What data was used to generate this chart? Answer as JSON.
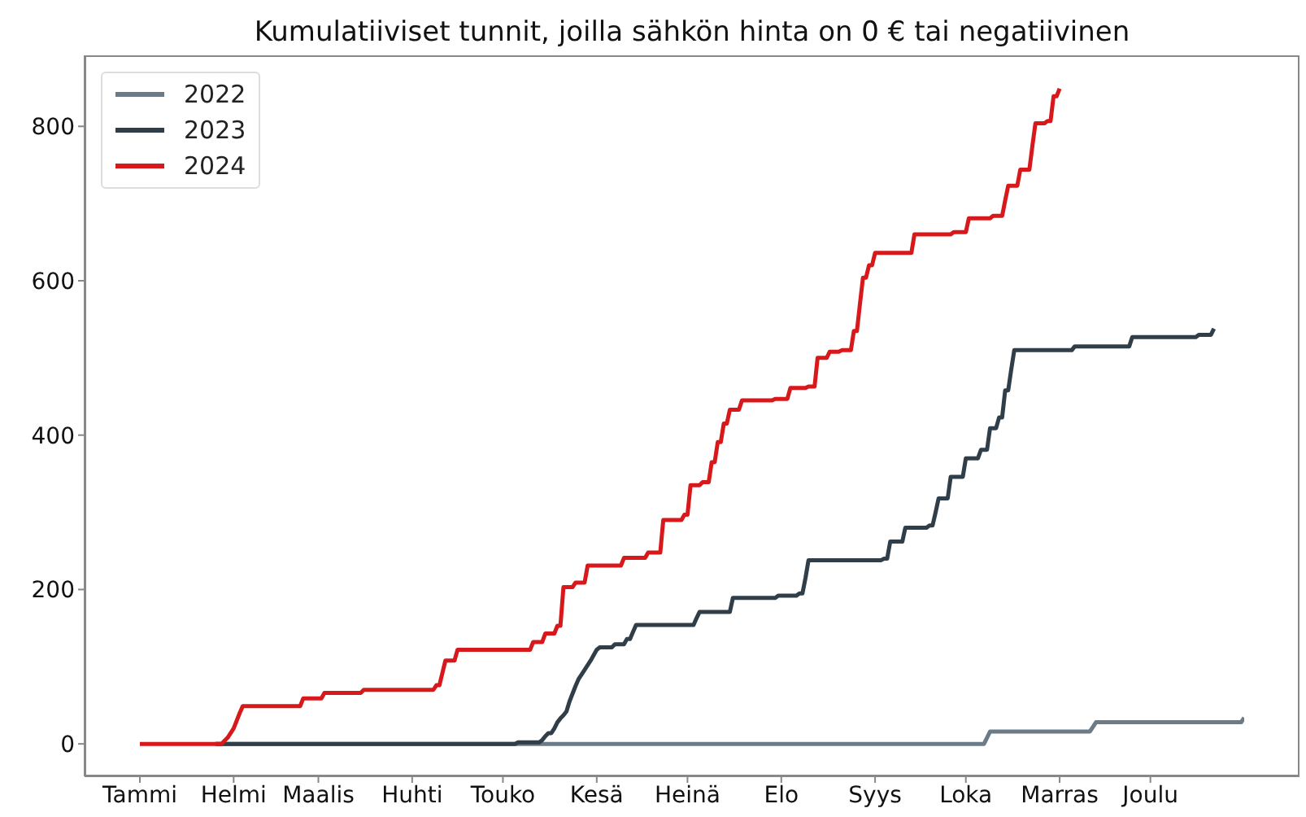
{
  "chart_data": {
    "type": "line",
    "title": "Kumulatiiviset tunnit, joilla sähkön hinta on 0 € tai negatiivinen",
    "categories": [
      "Tammi",
      null,
      null,
      null,
      null,
      null,
      null,
      null,
      null,
      null,
      null,
      null,
      null,
      null,
      null,
      null,
      null,
      null,
      null,
      null,
      null,
      null,
      null,
      null,
      null,
      null,
      null,
      null,
      null,
      null,
      null,
      "Helmi",
      null,
      null,
      null,
      null,
      null,
      null,
      null,
      null,
      null,
      null,
      null,
      null,
      null,
      null,
      null,
      null,
      null,
      null,
      null,
      null,
      null,
      null,
      null,
      null,
      null,
      null,
      null,
      "Maalis",
      null,
      null,
      null,
      null,
      null,
      null,
      null,
      null,
      null,
      null,
      null,
      null,
      null,
      null,
      null,
      null,
      null,
      null,
      null,
      null,
      null,
      null,
      null,
      null,
      null,
      null,
      null,
      null,
      null,
      null,
      "Huhti",
      null,
      null,
      null,
      null,
      null,
      null,
      null,
      null,
      null,
      null,
      null,
      null,
      null,
      null,
      null,
      null,
      null,
      null,
      null,
      null,
      null,
      null,
      null,
      null,
      null,
      null,
      null,
      null,
      null,
      "Touko",
      null,
      null,
      null,
      null,
      null,
      null,
      null,
      null,
      null,
      null,
      null,
      null,
      null,
      null,
      null,
      null,
      null,
      null,
      null,
      null,
      null,
      null,
      null,
      null,
      null,
      null,
      null,
      null,
      null,
      null,
      "Kesä",
      null,
      null,
      null,
      null,
      null,
      null,
      null,
      null,
      null,
      null,
      null,
      null,
      null,
      null,
      null,
      null,
      null,
      null,
      null,
      null,
      null,
      null,
      null,
      null,
      null,
      null,
      null,
      null,
      null,
      "Heinä",
      null,
      null,
      null,
      null,
      null,
      null,
      null,
      null,
      null,
      null,
      null,
      null,
      null,
      null,
      null,
      null,
      null,
      null,
      null,
      null,
      null,
      null,
      null,
      null,
      null,
      null,
      null,
      null,
      null,
      null,
      "Elo",
      null,
      null,
      null,
      null,
      null,
      null,
      null,
      null,
      null,
      null,
      null,
      null,
      null,
      null,
      null,
      null,
      null,
      null,
      null,
      null,
      null,
      null,
      null,
      null,
      null,
      null,
      null,
      null,
      null,
      null,
      "Syys",
      null,
      null,
      null,
      null,
      null,
      null,
      null,
      null,
      null,
      null,
      null,
      null,
      null,
      null,
      null,
      null,
      null,
      null,
      null,
      null,
      null,
      null,
      null,
      null,
      null,
      null,
      null,
      null,
      null,
      "Loka",
      null,
      null,
      null,
      null,
      null,
      null,
      null,
      null,
      null,
      null,
      null,
      null,
      null,
      null,
      null,
      null,
      null,
      null,
      null,
      null,
      null,
      null,
      null,
      null,
      null,
      null,
      null,
      null,
      null,
      null,
      "Marras",
      null,
      null,
      null,
      null,
      null,
      null,
      null,
      null,
      null,
      null,
      null,
      null,
      null,
      null,
      null,
      null,
      null,
      null,
      null,
      null,
      null,
      null,
      null,
      null,
      null,
      null,
      null,
      null,
      null,
      "Joulu",
      null,
      null,
      null,
      null,
      null,
      null,
      null,
      null,
      null,
      null,
      null,
      null,
      null,
      null,
      null,
      null,
      null,
      null,
      null,
      null,
      null,
      null,
      null,
      null,
      null,
      null,
      null,
      null,
      null,
      null,
      null
    ],
    "ylim": [
      -42,
      892
    ],
    "yticks": [
      0,
      200,
      400,
      600,
      800
    ],
    "legend": "top left",
    "series": [
      {
        "name": "2022",
        "color": "#6b7b88",
        "values": [
          null,
          null,
          null,
          null,
          null,
          null,
          null,
          null,
          null,
          null,
          null,
          null,
          null,
          null,
          null,
          null,
          null,
          null,
          null,
          null,
          null,
          null,
          null,
          null,
          null,
          0,
          0,
          0,
          0,
          0,
          0,
          0,
          0,
          0,
          0,
          0,
          0,
          0,
          0,
          0,
          0,
          0,
          0,
          0,
          0,
          0,
          0,
          0,
          0,
          0,
          0,
          0,
          0,
          0,
          0,
          0,
          0,
          0,
          0,
          0,
          0,
          0,
          0,
          0,
          0,
          0,
          0,
          0,
          0,
          0,
          0,
          0,
          0,
          0,
          0,
          0,
          0,
          0,
          0,
          0,
          0,
          0,
          0,
          0,
          0,
          0,
          0,
          0,
          0,
          0,
          0,
          0,
          0,
          0,
          0,
          0,
          0,
          0,
          0,
          0,
          0,
          0,
          0,
          0,
          0,
          0,
          0,
          0,
          0,
          0,
          0,
          0,
          0,
          0,
          0,
          0,
          0,
          0,
          0,
          0,
          0,
          0,
          0,
          0,
          0,
          0,
          0,
          0,
          0,
          0,
          0,
          0,
          0,
          0,
          0,
          0,
          0,
          0,
          0,
          0,
          0,
          0,
          0,
          0,
          0,
          0,
          0,
          0,
          0,
          0,
          0,
          0,
          0,
          0,
          0,
          0,
          0,
          0,
          0,
          0,
          0,
          0,
          0,
          0,
          0,
          0,
          0,
          0,
          0,
          0,
          0,
          0,
          0,
          0,
          0,
          0,
          0,
          0,
          0,
          0,
          0,
          0,
          0,
          0,
          0,
          0,
          0,
          0,
          0,
          0,
          0,
          0,
          0,
          0,
          0,
          0,
          0,
          0,
          0,
          0,
          0,
          0,
          0,
          0,
          0,
          0,
          0,
          0,
          0,
          0,
          0,
          0,
          0,
          0,
          0,
          0,
          0,
          0,
          0,
          0,
          0,
          0,
          0,
          0,
          0,
          0,
          0,
          0,
          0,
          0,
          0,
          0,
          0,
          0,
          0,
          0,
          0,
          0,
          0,
          0,
          0,
          0,
          0,
          0,
          0,
          0,
          0,
          0,
          0,
          0,
          0,
          0,
          0,
          0,
          0,
          0,
          0,
          0,
          0,
          0,
          0,
          0,
          0,
          0,
          0,
          0,
          0,
          0,
          0,
          0,
          0,
          0,
          0,
          0,
          0,
          0,
          0,
          0,
          0,
          0,
          8,
          16,
          16,
          16,
          16,
          16,
          16,
          16,
          16,
          16,
          16,
          16,
          16,
          16,
          16,
          16,
          16,
          16,
          16,
          16,
          16,
          16,
          16,
          16,
          16,
          16,
          16,
          16,
          16,
          16,
          16,
          16,
          16,
          16,
          16,
          22,
          28,
          28,
          28,
          28,
          28,
          28,
          28,
          28,
          28,
          28,
          28,
          28,
          28,
          28,
          28,
          28,
          28,
          28,
          28,
          28,
          28,
          28,
          28,
          28,
          28,
          28,
          28,
          28,
          28,
          28,
          28,
          28,
          28,
          28,
          28,
          28,
          28,
          28,
          28,
          28,
          28,
          28,
          28,
          28,
          28,
          28,
          28,
          28,
          28,
          34
        ]
      },
      {
        "name": "2023",
        "color": "#2f3e48",
        "values": [
          null,
          null,
          null,
          null,
          null,
          null,
          null,
          null,
          null,
          null,
          null,
          null,
          null,
          null,
          null,
          null,
          null,
          null,
          null,
          null,
          null,
          null,
          null,
          null,
          null,
          0,
          0,
          0,
          0,
          0,
          0,
          0,
          0,
          0,
          0,
          0,
          0,
          0,
          0,
          0,
          0,
          0,
          0,
          0,
          0,
          0,
          0,
          0,
          0,
          0,
          0,
          0,
          0,
          0,
          0,
          0,
          0,
          0,
          0,
          0,
          0,
          0,
          0,
          0,
          0,
          0,
          0,
          0,
          0,
          0,
          0,
          0,
          0,
          0,
          0,
          0,
          0,
          0,
          0,
          0,
          0,
          0,
          0,
          0,
          0,
          0,
          0,
          0,
          0,
          0,
          0,
          0,
          0,
          0,
          0,
          0,
          0,
          0,
          0,
          0,
          0,
          0,
          0,
          0,
          0,
          0,
          0,
          0,
          0,
          0,
          0,
          0,
          0,
          0,
          0,
          0,
          0,
          0,
          0,
          0,
          0,
          0,
          0,
          0,
          0,
          2,
          2,
          2,
          2,
          2,
          2,
          2,
          2,
          5,
          10,
          14,
          14,
          20,
          28,
          33,
          37,
          42,
          55,
          65,
          75,
          84,
          90,
          96,
          102,
          108,
          115,
          122,
          125,
          125,
          125,
          125,
          125,
          129,
          129,
          129,
          129,
          136,
          136,
          145,
          154,
          154,
          154,
          154,
          154,
          154,
          154,
          154,
          154,
          154,
          154,
          154,
          154,
          154,
          154,
          154,
          154,
          154,
          154,
          154,
          163,
          171,
          171,
          171,
          171,
          171,
          171,
          171,
          171,
          171,
          171,
          171,
          189,
          189,
          189,
          189,
          189,
          189,
          189,
          189,
          189,
          189,
          189,
          189,
          189,
          189,
          189,
          192,
          192,
          192,
          192,
          192,
          192,
          192,
          195,
          195,
          215,
          238,
          238,
          238,
          238,
          238,
          238,
          238,
          238,
          238,
          238,
          238,
          238,
          238,
          238,
          238,
          238,
          238,
          238,
          238,
          238,
          238,
          238,
          238,
          238,
          238,
          240,
          240,
          262,
          262,
          262,
          262,
          262,
          280,
          280,
          280,
          280,
          280,
          280,
          280,
          280,
          283,
          283,
          300,
          318,
          318,
          318,
          318,
          346,
          346,
          346,
          346,
          346,
          370,
          370,
          370,
          370,
          370,
          381,
          381,
          381,
          409,
          409,
          409,
          423,
          423,
          458,
          458,
          485,
          510,
          510,
          510,
          510,
          510,
          510,
          510,
          510,
          510,
          510,
          510,
          510,
          510,
          510,
          510,
          510,
          510,
          510,
          510,
          510,
          515,
          515,
          515,
          515,
          515,
          515,
          515,
          515,
          515,
          515,
          515,
          515,
          515,
          515,
          515,
          515,
          515,
          515,
          515,
          527,
          527,
          527,
          527,
          527,
          527,
          527,
          527,
          527,
          527,
          527,
          527,
          527,
          527,
          527,
          527,
          527,
          527,
          527,
          527,
          527,
          527,
          530,
          530,
          530,
          530,
          530,
          538,
          null,
          null,
          null,
          null,
          null,
          null,
          null,
          null,
          null,
          null
        ]
      },
      {
        "name": "2024",
        "color": "#d7191c",
        "values": [
          0,
          0,
          0,
          0,
          0,
          0,
          0,
          0,
          0,
          0,
          0,
          0,
          0,
          0,
          0,
          0,
          0,
          0,
          0,
          0,
          0,
          0,
          0,
          0,
          0,
          0,
          0,
          0,
          4,
          8,
          14,
          20,
          30,
          40,
          49,
          49,
          49,
          49,
          49,
          49,
          49,
          49,
          49,
          49,
          49,
          49,
          49,
          49,
          49,
          49,
          49,
          49,
          49,
          49,
          59,
          59,
          59,
          59,
          59,
          59,
          59,
          66,
          66,
          66,
          66,
          66,
          66,
          66,
          66,
          66,
          66,
          66,
          66,
          66,
          70,
          70,
          70,
          70,
          70,
          70,
          70,
          70,
          70,
          70,
          70,
          70,
          70,
          70,
          70,
          70,
          70,
          70,
          70,
          70,
          70,
          70,
          70,
          70,
          76,
          76,
          92,
          108,
          108,
          108,
          108,
          122,
          122,
          122,
          122,
          122,
          122,
          122,
          122,
          122,
          122,
          122,
          122,
          122,
          122,
          122,
          122,
          122,
          122,
          122,
          122,
          122,
          122,
          122,
          122,
          122,
          132,
          132,
          132,
          132,
          143,
          143,
          143,
          143,
          153,
          153,
          203,
          203,
          203,
          203,
          209,
          209,
          209,
          209,
          231,
          231,
          231,
          231,
          231,
          231,
          231,
          231,
          231,
          231,
          231,
          231,
          241,
          241,
          241,
          241,
          241,
          241,
          241,
          241,
          248,
          248,
          248,
          248,
          248,
          290,
          290,
          290,
          290,
          290,
          290,
          290,
          297,
          297,
          335,
          335,
          335,
          335,
          339,
          339,
          339,
          365,
          365,
          391,
          391,
          415,
          415,
          433,
          433,
          433,
          433,
          445,
          445,
          445,
          445,
          445,
          445,
          445,
          445,
          445,
          445,
          445,
          447,
          447,
          447,
          447,
          447,
          461,
          461,
          461,
          461,
          461,
          461,
          463,
          463,
          463,
          500,
          500,
          500,
          500,
          508,
          508,
          508,
          508,
          510,
          510,
          510,
          510,
          535,
          535,
          570,
          604,
          604,
          620,
          620,
          636,
          636,
          636,
          636,
          636,
          636,
          636,
          636,
          636,
          636,
          636,
          636,
          636,
          660,
          660,
          660,
          660,
          660,
          660,
          660,
          660,
          660,
          660,
          660,
          660,
          660,
          663,
          663,
          663,
          663,
          663,
          681,
          681,
          681,
          681,
          681,
          681,
          681,
          681,
          684,
          684,
          684,
          684,
          704,
          723,
          723,
          723,
          723,
          744,
          744,
          744,
          744,
          775,
          804,
          804,
          804,
          804,
          807,
          807,
          839,
          839,
          849,
          null,
          null,
          null,
          null,
          null,
          null,
          null,
          null,
          null,
          null,
          null,
          null,
          null,
          null,
          null,
          null,
          null,
          null,
          null,
          null,
          null,
          null,
          null,
          null,
          null,
          null,
          null,
          null,
          null,
          null,
          null,
          null,
          null,
          null,
          null,
          null,
          null,
          null,
          null,
          null,
          null,
          null,
          null,
          null,
          null,
          null,
          null,
          null,
          null,
          null,
          null,
          null,
          null,
          null,
          null,
          null,
          null,
          null,
          null,
          null,
          null
        ]
      }
    ]
  }
}
